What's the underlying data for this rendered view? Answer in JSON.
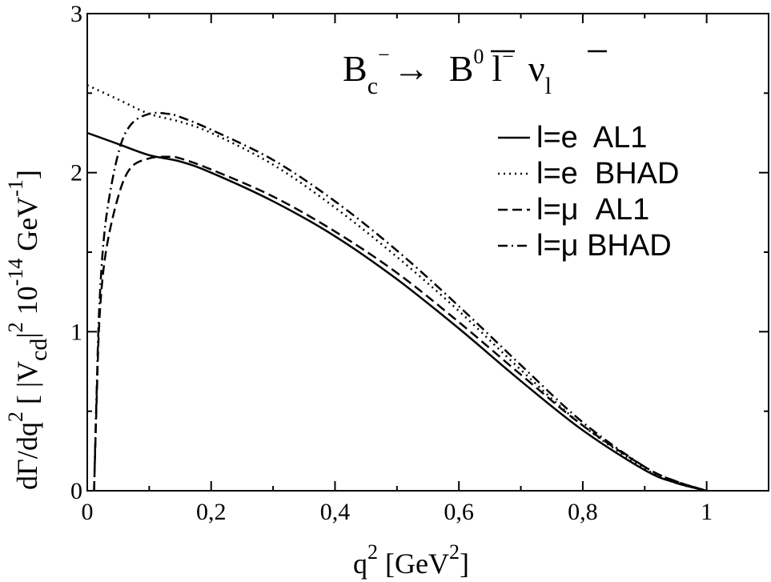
{
  "chart_data": {
    "type": "line",
    "title": {
      "parent": "B",
      "parent_sub": "c",
      "parent_sup": "−",
      "arrow": "→",
      "meson": "B",
      "meson_sup": "0",
      "lepton": "l",
      "lepton_sup": "−",
      "neutrino": "ν",
      "neutrino_sub": "l"
    },
    "xlabel": {
      "main": "q",
      "sup": "2",
      "unit_open": " [GeV",
      "unit_sup": "2",
      "unit_close": "]"
    },
    "ylabel": {
      "p1": "dΓ/dq",
      "s1": "2",
      "p2": "  [ |V",
      "sub": "cd",
      "p3": "|",
      "s2": "2",
      "p4": " 10",
      "s3": "-14",
      "p5": " GeV",
      "s4": "-1",
      "p6": "]"
    },
    "xlim": [
      0,
      1.1
    ],
    "ylim": [
      0,
      3
    ],
    "xticks": [
      0,
      0.2,
      0.4,
      0.6,
      0.8,
      1
    ],
    "xtick_labels": [
      "0",
      "0,2",
      "0,4",
      "0,6",
      "0,8",
      "1"
    ],
    "yticks": [
      0,
      1,
      2,
      3
    ],
    "ytick_labels": [
      "0",
      "1",
      "2",
      "3"
    ],
    "grid": false,
    "legend_position": "top-right",
    "series": [
      {
        "name": "l=e  AL1",
        "style": "solid",
        "x": [
          0,
          0.05,
          0.1,
          0.15,
          0.2,
          0.3,
          0.4,
          0.5,
          0.6,
          0.7,
          0.8,
          0.9,
          0.95,
          1.0
        ],
        "y": [
          2.25,
          2.18,
          2.11,
          2.07,
          2.0,
          1.82,
          1.6,
          1.33,
          1.02,
          0.69,
          0.38,
          0.13,
          0.05,
          0.0
        ]
      },
      {
        "name": "l=e  BHAD",
        "style": "dotted",
        "x": [
          0,
          0.05,
          0.1,
          0.15,
          0.2,
          0.3,
          0.4,
          0.5,
          0.6,
          0.7,
          0.8,
          0.9,
          0.95,
          1.0
        ],
        "y": [
          2.55,
          2.46,
          2.37,
          2.32,
          2.25,
          2.05,
          1.78,
          1.47,
          1.13,
          0.76,
          0.41,
          0.14,
          0.05,
          0.0
        ]
      },
      {
        "name": "l=μ  AL1",
        "style": "dashed",
        "x": [
          0.011,
          0.015,
          0.02,
          0.03,
          0.05,
          0.07,
          0.1,
          0.13,
          0.15,
          0.2,
          0.3,
          0.4,
          0.5,
          0.6,
          0.7,
          0.8,
          0.9,
          0.95,
          1.0
        ],
        "y": [
          0.0,
          0.55,
          1.1,
          1.5,
          1.85,
          2.03,
          2.09,
          2.1,
          2.09,
          2.02,
          1.85,
          1.63,
          1.37,
          1.06,
          0.73,
          0.41,
          0.15,
          0.06,
          0.0
        ]
      },
      {
        "name": "l=μ BHAD",
        "style": "dashdot",
        "x": [
          0.011,
          0.015,
          0.02,
          0.03,
          0.05,
          0.07,
          0.1,
          0.13,
          0.15,
          0.2,
          0.3,
          0.4,
          0.5,
          0.6,
          0.7,
          0.8,
          0.9,
          0.95,
          1.0
        ],
        "y": [
          0.0,
          0.6,
          1.2,
          1.7,
          2.12,
          2.3,
          2.37,
          2.37,
          2.35,
          2.27,
          2.08,
          1.82,
          1.51,
          1.16,
          0.79,
          0.43,
          0.15,
          0.06,
          0.0
        ]
      }
    ]
  }
}
